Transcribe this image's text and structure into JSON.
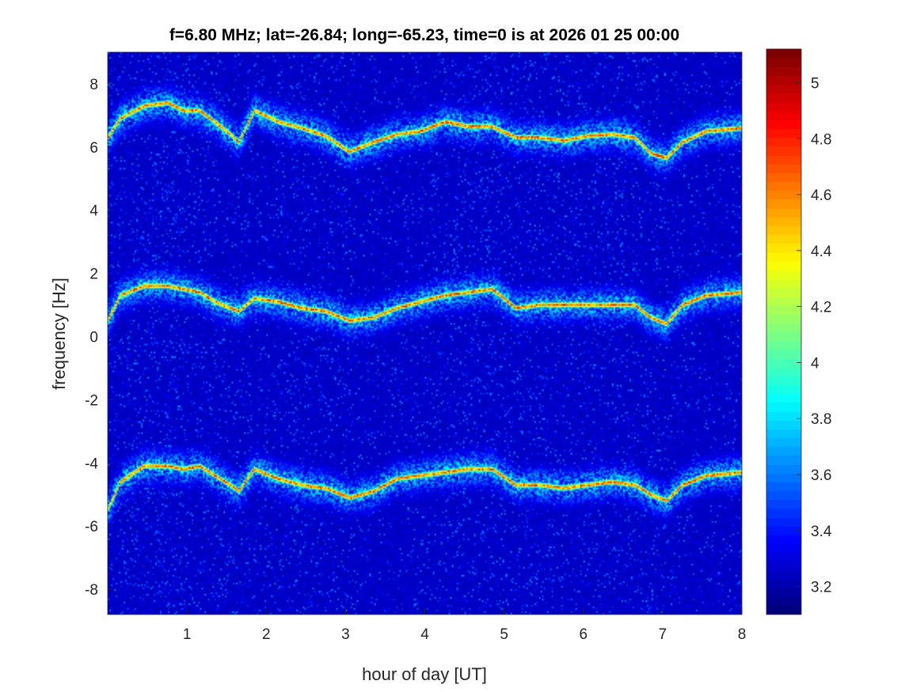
{
  "chart_data": {
    "type": "heatmap",
    "title": "f=6.80 MHz;  lat=-26.84; long=-65.23, time=0 is at 2026 01 25 00:00",
    "xlabel": "hour of day [UT]",
    "ylabel": "frequency [Hz]",
    "xlim": [
      0,
      8
    ],
    "ylim": [
      -8.8,
      9
    ],
    "xticks": [
      1,
      2,
      3,
      4,
      5,
      6,
      7,
      8
    ],
    "yticks": [
      -8,
      -6,
      -4,
      -2,
      0,
      2,
      4,
      6,
      8
    ],
    "colormap": "jet",
    "clim": [
      3.1,
      5.12
    ],
    "colorbar_ticks": [
      3.2,
      3.4,
      3.6,
      3.8,
      4,
      4.2,
      4.4,
      4.6,
      4.8,
      5
    ],
    "colorbar_location": "right",
    "grid": false,
    "ridge_traces": {
      "hours": [
        0,
        0.16,
        0.46,
        0.76,
        0.96,
        1.16,
        1.35,
        1.55,
        1.65,
        1.85,
        2.15,
        2.45,
        2.75,
        3.05,
        3.35,
        3.65,
        3.95,
        4.25,
        4.55,
        4.85,
        5.15,
        5.45,
        5.75,
        6.05,
        6.35,
        6.65,
        6.85,
        7.05,
        7.25,
        7.55,
        8
      ],
      "series": [
        {
          "values": [
            6.3,
            6.9,
            7.3,
            7.4,
            7.15,
            7.15,
            6.8,
            6.4,
            6.15,
            7.15,
            6.8,
            6.6,
            6.35,
            5.85,
            6.15,
            6.4,
            6.5,
            6.8,
            6.65,
            6.65,
            6.3,
            6.3,
            6.2,
            6.35,
            6.4,
            6.3,
            5.8,
            5.65,
            6.15,
            6.5,
            6.6
          ]
        },
        {
          "values": [
            0.5,
            1.3,
            1.6,
            1.6,
            1.5,
            1.4,
            1.1,
            0.9,
            0.8,
            1.2,
            1.1,
            0.9,
            0.8,
            0.5,
            0.6,
            0.9,
            1.1,
            1.3,
            1.4,
            1.5,
            0.9,
            1.0,
            1.0,
            1.0,
            1.0,
            1.0,
            0.6,
            0.4,
            1.0,
            1.3,
            1.4
          ]
        },
        {
          "values": [
            -5.5,
            -4.6,
            -4.1,
            -4.1,
            -4.2,
            -4.1,
            -4.4,
            -4.7,
            -4.9,
            -4.2,
            -4.5,
            -4.7,
            -4.8,
            -5.1,
            -4.9,
            -4.5,
            -4.4,
            -4.3,
            -4.2,
            -4.2,
            -4.7,
            -4.7,
            -4.8,
            -4.7,
            -4.6,
            -4.7,
            -5.0,
            -5.2,
            -4.7,
            -4.4,
            -4.3
          ]
        }
      ],
      "peak_value": 5.05,
      "background_value": 3.2
    }
  }
}
